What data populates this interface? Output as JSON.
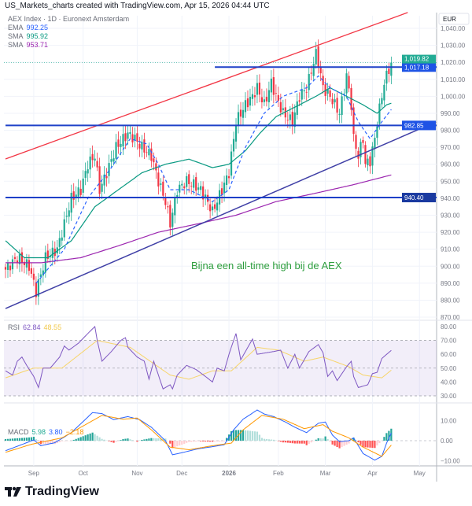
{
  "header": {
    "caption": "US_Markets_charts created with TradingView.com, Apr 15, 2026 04:44 UTC"
  },
  "legend": {
    "symbol": "AEX Index · 1D · Euronext Amsterdam",
    "ema_label": "EMA",
    "ema_value": "992.25",
    "sma1_label": "SMA",
    "sma1_value": "995.92",
    "sma2_label": "SMA",
    "sma2_value": "953.71",
    "rsi_label": "RSI",
    "rsi_value": "62.84",
    "rsi_ma_value": "48.55",
    "macd_label": "MACD",
    "macd_hist_value": "5.98",
    "macd_value": "3.80",
    "macd_signal_value": "−2.18"
  },
  "annotation": "Bijna een all-time high bij de AEX",
  "logo": {
    "text": "TradingView"
  },
  "colors": {
    "up": "#22ab94",
    "down": "#f23645",
    "ema": "#2962ff",
    "sma1": "#089981",
    "sma2": "#9c27b0",
    "hline": "#1e40c8",
    "channel": "#f23645",
    "trend": "#3f3fa6",
    "rsi": "#7e57c2",
    "rsi_ma": "#f7d56a",
    "macd": "#2962ff",
    "signal": "#ff9800"
  },
  "chart_data": {
    "type": "candlestick",
    "currency": "EUR",
    "price_axis": {
      "ylim": [
        870,
        1040
      ],
      "ticks": [
        "1,040.00",
        "1,030.00",
        "1,020.00",
        "1,010.00",
        "1,000.00",
        "990.00",
        "980.00",
        "970.00",
        "960.00",
        "950.00",
        "940.00",
        "930.00",
        "920.00",
        "910.00",
        "900.00",
        "890.00",
        "880.00",
        "870.00"
      ]
    },
    "x_ticks": [
      {
        "label": "Sep",
        "d": 12
      },
      {
        "label": "Oct",
        "d": 33
      },
      {
        "label": "Nov",
        "d": 56
      },
      {
        "label": "Dec",
        "d": 75
      },
      {
        "label": "2026",
        "d": 95,
        "bold": true
      },
      {
        "label": "Feb",
        "d": 116
      },
      {
        "label": "Mar",
        "d": 136
      },
      {
        "label": "Apr",
        "d": 156
      },
      {
        "label": "May",
        "d": 176
      }
    ],
    "days": 165,
    "close_keypoints": [
      [
        0,
        898
      ],
      [
        5,
        905
      ],
      [
        10,
        900
      ],
      [
        13,
        885
      ],
      [
        17,
        905
      ],
      [
        22,
        910
      ],
      [
        25,
        925
      ],
      [
        28,
        940
      ],
      [
        32,
        945
      ],
      [
        35,
        960
      ],
      [
        38,
        965
      ],
      [
        40,
        945
      ],
      [
        43,
        955
      ],
      [
        47,
        970
      ],
      [
        52,
        978
      ],
      [
        55,
        975
      ],
      [
        58,
        970
      ],
      [
        62,
        965
      ],
      [
        65,
        950
      ],
      [
        68,
        938
      ],
      [
        70,
        925
      ],
      [
        73,
        945
      ],
      [
        77,
        950
      ],
      [
        80,
        948
      ],
      [
        83,
        945
      ],
      [
        87,
        935
      ],
      [
        88,
        932
      ],
      [
        92,
        945
      ],
      [
        95,
        955
      ],
      [
        97,
        975
      ],
      [
        98,
        985
      ],
      [
        102,
        995
      ],
      [
        105,
        1000
      ],
      [
        107,
        1005
      ],
      [
        110,
        995
      ],
      [
        113,
        1008
      ],
      [
        115,
        1000
      ],
      [
        118,
        990
      ],
      [
        122,
        985
      ],
      [
        125,
        1000
      ],
      [
        128,
        1005
      ],
      [
        132,
        1025
      ],
      [
        133,
        1020
      ],
      [
        135,
        1005
      ],
      [
        138,
        1000
      ],
      [
        142,
        990
      ],
      [
        145,
        1012
      ],
      [
        147,
        995
      ],
      [
        148,
        975
      ],
      [
        150,
        965
      ],
      [
        152,
        975
      ],
      [
        153,
        960
      ],
      [
        155,
        962
      ],
      [
        157,
        975
      ],
      [
        158,
        985
      ],
      [
        161,
        1008
      ],
      [
        162,
        1012
      ],
      [
        164,
        1019.82
      ]
    ],
    "ema": [
      [
        13,
        890
      ],
      [
        25,
        910
      ],
      [
        35,
        940
      ],
      [
        45,
        958
      ],
      [
        53,
        975
      ],
      [
        60,
        972
      ],
      [
        65,
        960
      ],
      [
        70,
        945
      ],
      [
        78,
        945
      ],
      [
        88,
        938
      ],
      [
        95,
        945
      ],
      [
        102,
        970
      ],
      [
        110,
        990
      ],
      [
        118,
        1000
      ],
      [
        128,
        1005
      ],
      [
        133,
        1012
      ],
      [
        138,
        1005
      ],
      [
        145,
        1000
      ],
      [
        150,
        985
      ],
      [
        155,
        975
      ],
      [
        160,
        985
      ],
      [
        164,
        992.25
      ]
    ],
    "sma1": [
      [
        0,
        915
      ],
      [
        8,
        905
      ],
      [
        18,
        905
      ],
      [
        28,
        915
      ],
      [
        38,
        935
      ],
      [
        48,
        945
      ],
      [
        58,
        955
      ],
      [
        68,
        960
      ],
      [
        78,
        963
      ],
      [
        88,
        958
      ],
      [
        95,
        960
      ],
      [
        102,
        968
      ],
      [
        108,
        978
      ],
      [
        115,
        988
      ],
      [
        125,
        995
      ],
      [
        132,
        1000
      ],
      [
        138,
        1005
      ],
      [
        145,
        1000
      ],
      [
        152,
        995
      ],
      [
        158,
        990
      ],
      [
        162,
        995
      ],
      [
        164,
        995.92
      ]
    ],
    "sma2": [
      [
        0,
        902
      ],
      [
        15,
        902
      ],
      [
        32,
        905
      ],
      [
        48,
        912
      ],
      [
        65,
        920
      ],
      [
        82,
        925
      ],
      [
        98,
        930
      ],
      [
        115,
        938
      ],
      [
        132,
        943
      ],
      [
        148,
        948
      ],
      [
        164,
        953.71
      ]
    ],
    "hlines": [
      {
        "price": 1017.18,
        "label": "1,017.18",
        "from_d": 89
      },
      {
        "price": 982.85,
        "label": "982.85",
        "from_d": 0
      },
      {
        "price": 940.4,
        "label": "940.40",
        "from_d": 0
      }
    ],
    "last_price": {
      "price": 1019.82,
      "label": "1,019.82"
    },
    "channel_line": {
      "p1": [
        0,
        963.1
      ],
      "p2": [
        171,
        1049.3
      ]
    },
    "trend_line": {
      "p1": [
        0,
        875.1
      ],
      "p2": [
        183,
        984.9
      ]
    },
    "rsi": {
      "ylim": [
        25,
        85
      ],
      "ticks": [
        "80.00",
        "70.00",
        "60.00",
        "50.00",
        "40.00",
        "30.00"
      ],
      "levels": [
        70,
        50,
        30
      ],
      "values": [
        [
          0,
          48
        ],
        [
          3,
          45
        ],
        [
          5,
          55
        ],
        [
          7,
          58
        ],
        [
          9,
          52
        ],
        [
          12,
          44
        ],
        [
          14,
          36
        ],
        [
          16,
          50
        ],
        [
          19,
          50
        ],
        [
          23,
          58
        ],
        [
          25,
          66
        ],
        [
          27,
          63
        ],
        [
          31,
          68
        ],
        [
          35,
          75
        ],
        [
          38,
          80
        ],
        [
          39,
          70
        ],
        [
          41,
          55
        ],
        [
          45,
          62
        ],
        [
          49,
          70
        ],
        [
          51,
          72
        ],
        [
          52,
          65
        ],
        [
          56,
          58
        ],
        [
          59,
          55
        ],
        [
          61,
          42
        ],
        [
          63,
          55
        ],
        [
          65,
          45
        ],
        [
          67,
          35
        ],
        [
          70,
          38
        ],
        [
          71,
          35
        ],
        [
          73,
          45
        ],
        [
          77,
          52
        ],
        [
          81,
          49
        ],
        [
          85,
          44
        ],
        [
          88,
          40
        ],
        [
          90,
          50
        ],
        [
          93,
          48
        ],
        [
          95,
          60
        ],
        [
          98,
          75
        ],
        [
          100,
          56
        ],
        [
          104,
          68
        ],
        [
          105,
          71
        ],
        [
          107,
          60
        ],
        [
          114,
          62
        ],
        [
          117,
          63
        ],
        [
          120,
          50
        ],
        [
          123,
          60
        ],
        [
          125,
          50
        ],
        [
          129,
          62
        ],
        [
          133,
          67
        ],
        [
          135,
          61
        ],
        [
          137,
          44
        ],
        [
          139,
          48
        ],
        [
          141,
          41
        ],
        [
          145,
          51
        ],
        [
          147,
          55
        ],
        [
          148,
          44
        ],
        [
          150,
          36
        ],
        [
          154,
          38
        ],
        [
          156,
          46
        ],
        [
          158,
          47
        ],
        [
          160,
          57
        ],
        [
          164,
          62.84
        ]
      ],
      "ma": [
        [
          0,
          43
        ],
        [
          12,
          50
        ],
        [
          24,
          50
        ],
        [
          39,
          70
        ],
        [
          53,
          65
        ],
        [
          70,
          45
        ],
        [
          78,
          42
        ],
        [
          88,
          48
        ],
        [
          96,
          48
        ],
        [
          107,
          65
        ],
        [
          116,
          63
        ],
        [
          127,
          55
        ],
        [
          135,
          58
        ],
        [
          146,
          51
        ],
        [
          152,
          45
        ],
        [
          160,
          43
        ],
        [
          164,
          48.55
        ]
      ]
    },
    "macd": {
      "ylim": [
        -13,
        17
      ],
      "ticks": [
        "10.00",
        "0.00",
        "−10.00"
      ],
      "macd": [
        [
          0,
          -5
        ],
        [
          9,
          -1
        ],
        [
          12,
          0.4
        ],
        [
          15,
          -2.5
        ],
        [
          21,
          -1
        ],
        [
          28,
          4
        ],
        [
          37,
          14
        ],
        [
          41,
          13.5
        ],
        [
          46,
          10.5
        ],
        [
          52,
          12
        ],
        [
          57,
          10.5
        ],
        [
          62,
          6.7
        ],
        [
          68,
          0
        ],
        [
          71,
          -7
        ],
        [
          75,
          -6
        ],
        [
          82,
          -4
        ],
        [
          88,
          -3
        ],
        [
          93,
          -2
        ],
        [
          97,
          5.4
        ],
        [
          101,
          10.7
        ],
        [
          107,
          15.3
        ],
        [
          110,
          13.3
        ],
        [
          114,
          12
        ],
        [
          119,
          9.3
        ],
        [
          123,
          6.7
        ],
        [
          128,
          4
        ],
        [
          133,
          8.7
        ],
        [
          136,
          9.3
        ],
        [
          139,
          2.8
        ],
        [
          142,
          -0.5
        ],
        [
          146,
          0
        ],
        [
          148,
          1.4
        ],
        [
          152,
          -6.4
        ],
        [
          157,
          -9.7
        ],
        [
          160,
          -7.8
        ],
        [
          162,
          -1.2
        ],
        [
          164,
          3.8
        ]
      ],
      "signal": [
        [
          0,
          -5.8
        ],
        [
          11,
          -1.8
        ],
        [
          24,
          1.4
        ],
        [
          41,
          12.6
        ],
        [
          50,
          10.7
        ],
        [
          56,
          11.3
        ],
        [
          62,
          5.4
        ],
        [
          70,
          -3.2
        ],
        [
          78,
          -4.5
        ],
        [
          88,
          -2.5
        ],
        [
          96,
          -1.2
        ],
        [
          101,
          5.4
        ],
        [
          109,
          12.6
        ],
        [
          118,
          10.7
        ],
        [
          127,
          6
        ],
        [
          135,
          8
        ],
        [
          139,
          4.7
        ],
        [
          146,
          1.4
        ],
        [
          152,
          -3.2
        ],
        [
          160,
          -7.8
        ],
        [
          164,
          -2.18
        ]
      ]
    }
  }
}
